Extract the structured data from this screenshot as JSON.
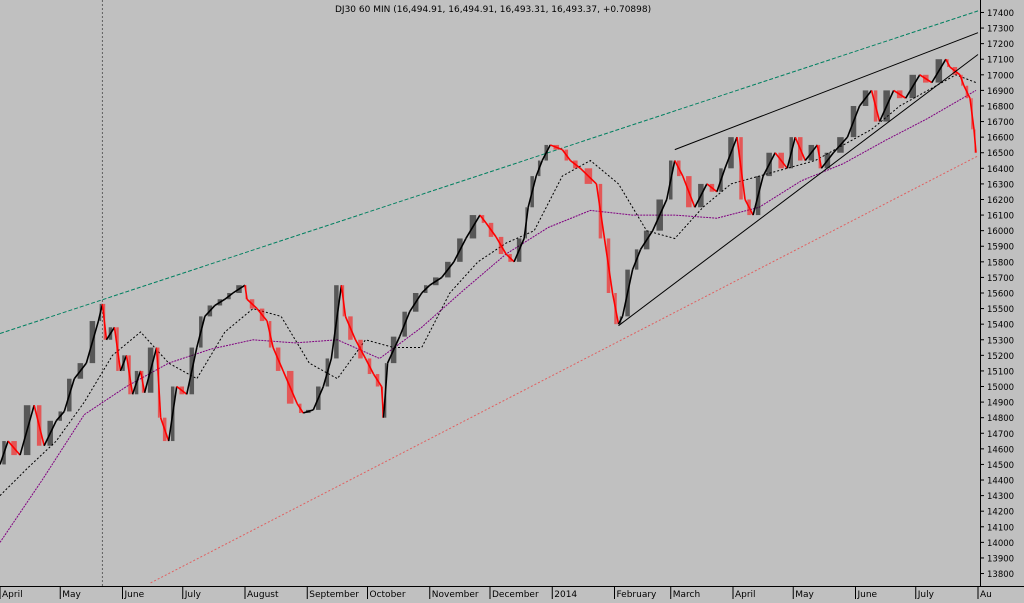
{
  "header": {
    "title": "DJ30 60 MIN (16,494.91, 16,494.91, 16,493.31, 16,493.37, +0.70898)"
  },
  "colors": {
    "background": "#c0c0c0",
    "grid": "#b0b0b0",
    "up_candle": "#000000",
    "down_candle": "#ff0000",
    "ma_fast": "#000000",
    "ma_slow": "#800080",
    "upper_channel": "#008060",
    "lower_channel": "#e06060",
    "wedge_lines": "#000000"
  },
  "chart_data": {
    "type": "line",
    "title": "DJ30 60 MIN (16,494.91, 16,494.91, 16,493.31, 16,493.37, +0.70898)",
    "xlabel": "",
    "ylabel": "",
    "ylim": [
      13720,
      17480
    ],
    "y_ticks": [
      13800,
      13900,
      14000,
      14100,
      14200,
      14300,
      14400,
      14500,
      14600,
      14700,
      14800,
      14900,
      15000,
      15100,
      15200,
      15300,
      15400,
      15500,
      15600,
      15700,
      15800,
      15900,
      16000,
      16100,
      16200,
      16300,
      16400,
      16500,
      16600,
      16700,
      16800,
      16900,
      17000,
      17100,
      17200,
      17300,
      17400
    ],
    "x_range": [
      "2013-04-01",
      "2014-08-01"
    ],
    "x_ticks": [
      {
        "label": "April",
        "date": "2013-04-01"
      },
      {
        "label": "May",
        "date": "2013-05-01"
      },
      {
        "label": "June",
        "date": "2013-06-01"
      },
      {
        "label": "July",
        "date": "2013-07-01"
      },
      {
        "label": "August",
        "date": "2013-08-01"
      },
      {
        "label": "September",
        "date": "2013-09-01"
      },
      {
        "label": "October",
        "date": "2013-10-01"
      },
      {
        "label": "November",
        "date": "2013-11-01"
      },
      {
        "label": "December",
        "date": "2013-12-01"
      },
      {
        "label": "2014",
        "date": "2014-01-01"
      },
      {
        "label": "February",
        "date": "2014-02-01"
      },
      {
        "label": "March",
        "date": "2014-03-01"
      },
      {
        "label": "April",
        "date": "2014-04-01"
      },
      {
        "label": "May",
        "date": "2014-05-01"
      },
      {
        "label": "June",
        "date": "2014-06-01"
      },
      {
        "label": "July",
        "date": "2014-07-01"
      },
      {
        "label": "Au",
        "date": "2014-08-01"
      }
    ],
    "grid": false,
    "vertical_marker_date": "2013-05-22",
    "series": [
      {
        "style": "price",
        "x": [
          "2013-04-01",
          "2013-04-05",
          "2013-04-11",
          "2013-04-18",
          "2013-04-23",
          "2013-04-29",
          "2013-05-03",
          "2013-05-08",
          "2013-05-14",
          "2013-05-20",
          "2013-05-22",
          "2013-05-24",
          "2013-05-28",
          "2013-05-31",
          "2013-06-03",
          "2013-06-06",
          "2013-06-10",
          "2013-06-12",
          "2013-06-18",
          "2013-06-20",
          "2013-06-24",
          "2013-06-28",
          "2013-07-03",
          "2013-07-08",
          "2013-07-12",
          "2013-07-17",
          "2013-07-22",
          "2013-07-26",
          "2013-08-01",
          "2013-08-02",
          "2013-08-07",
          "2013-08-12",
          "2013-08-15",
          "2013-08-20",
          "2013-08-27",
          "2013-08-30",
          "2013-09-04",
          "2013-09-09",
          "2013-09-13",
          "2013-09-18",
          "2013-09-20",
          "2013-09-25",
          "2013-09-30",
          "2013-10-04",
          "2013-10-08",
          "2013-10-09",
          "2013-10-11",
          "2013-10-17",
          "2013-10-22",
          "2013-10-28",
          "2013-11-01",
          "2013-11-07",
          "2013-11-13",
          "2013-11-19",
          "2013-11-26",
          "2013-11-29",
          "2013-12-04",
          "2013-12-09",
          "2013-12-13",
          "2013-12-18",
          "2013-12-20",
          "2013-12-24",
          "2013-12-27",
          "2013-12-31",
          "2014-01-06",
          "2014-01-10",
          "2014-01-15",
          "2014-01-23",
          "2014-01-27",
          "2014-01-31",
          "2014-02-03",
          "2014-02-05",
          "2014-02-10",
          "2014-02-14",
          "2014-02-20",
          "2014-02-27",
          "2014-03-03",
          "2014-03-07",
          "2014-03-13",
          "2014-03-19",
          "2014-03-24",
          "2014-03-28",
          "2014-04-03",
          "2014-04-07",
          "2014-04-11",
          "2014-04-16",
          "2014-04-22",
          "2014-04-28",
          "2014-05-02",
          "2014-05-07",
          "2014-05-13",
          "2014-05-15",
          "2014-05-21",
          "2014-05-28",
          "2014-06-03",
          "2014-06-09",
          "2014-06-13",
          "2014-06-20",
          "2014-06-26",
          "2014-07-03",
          "2014-07-09",
          "2014-07-16",
          "2014-07-18",
          "2014-07-23",
          "2014-07-25",
          "2014-07-28",
          "2014-07-30",
          "2014-07-31"
        ],
        "y": [
          14500,
          14650,
          14560,
          14880,
          14620,
          14780,
          14840,
          15050,
          15150,
          15420,
          15530,
          15300,
          15380,
          15100,
          15200,
          14950,
          15100,
          14960,
          15250,
          14800,
          14650,
          15000,
          14950,
          15250,
          15450,
          15520,
          15560,
          15600,
          15650,
          15560,
          15500,
          15420,
          15250,
          15100,
          14890,
          14830,
          14850,
          15000,
          15180,
          15650,
          15450,
          15300,
          15180,
          15080,
          15000,
          14800,
          15150,
          15320,
          15480,
          15600,
          15650,
          15700,
          15800,
          15950,
          16100,
          16050,
          15960,
          15850,
          15800,
          15950,
          16150,
          16350,
          16450,
          16550,
          16520,
          16450,
          16400,
          16300,
          15950,
          15600,
          15400,
          15450,
          15750,
          15880,
          16000,
          16200,
          16450,
          16350,
          16150,
          16300,
          16250,
          16400,
          16600,
          16200,
          16100,
          16350,
          16500,
          16400,
          16600,
          16450,
          16550,
          16400,
          16500,
          16600,
          16800,
          16900,
          16700,
          16900,
          16850,
          17000,
          16950,
          17100,
          17050,
          17000,
          16930,
          16850,
          16650,
          16500
        ]
      },
      {
        "name": "",
        "style": "ma_fast",
        "x": [
          "2013-04-01",
          "2013-04-15",
          "2013-04-29",
          "2013-05-13",
          "2013-05-27",
          "2013-06-10",
          "2013-06-24",
          "2013-07-08",
          "2013-07-22",
          "2013-08-05",
          "2013-08-19",
          "2013-09-02",
          "2013-09-16",
          "2013-09-30",
          "2013-10-14",
          "2013-10-28",
          "2013-11-11",
          "2013-11-25",
          "2013-12-09",
          "2013-12-23",
          "2014-01-06",
          "2014-01-20",
          "2014-02-03",
          "2014-02-17",
          "2014-03-03",
          "2014-03-17",
          "2014-03-31",
          "2014-04-14",
          "2014-04-28",
          "2014-05-12",
          "2014-05-26",
          "2014-06-09",
          "2014-06-23",
          "2014-07-07",
          "2014-07-21",
          "2014-07-31"
        ],
        "y": [
          14300,
          14480,
          14650,
          14900,
          15200,
          15350,
          15150,
          15050,
          15350,
          15500,
          15450,
          15150,
          15050,
          15300,
          15250,
          15250,
          15600,
          15800,
          15920,
          16000,
          16350,
          16450,
          16300,
          16000,
          15950,
          16150,
          16300,
          16350,
          16400,
          16450,
          16550,
          16650,
          16800,
          16900,
          17000,
          16950
        ]
      },
      {
        "name": "",
        "style": "ma_slow",
        "x": [
          "2013-04-01",
          "2013-04-22",
          "2013-05-13",
          "2013-06-03",
          "2013-06-24",
          "2013-07-15",
          "2013-08-05",
          "2013-08-26",
          "2013-09-16",
          "2013-10-07",
          "2013-10-28",
          "2013-11-18",
          "2013-12-09",
          "2013-12-30",
          "2014-01-20",
          "2014-02-10",
          "2014-03-03",
          "2014-03-24",
          "2014-04-14",
          "2014-05-05",
          "2014-05-26",
          "2014-06-16",
          "2014-07-07",
          "2014-07-31"
        ],
        "y": [
          14000,
          14400,
          14820,
          15000,
          15150,
          15240,
          15300,
          15280,
          15300,
          15180,
          15380,
          15620,
          15850,
          16020,
          16130,
          16100,
          16100,
          16080,
          16150,
          16320,
          16430,
          16580,
          16720,
          16900
        ]
      },
      {
        "name": "",
        "style": "upper_channel",
        "x": [
          "2013-04-01",
          "2014-08-01"
        ],
        "y": [
          15340,
          17410
        ]
      },
      {
        "name": "",
        "style": "lower_channel",
        "x": [
          "2013-06-15",
          "2014-08-01"
        ],
        "y": [
          13740,
          16480
        ]
      },
      {
        "name": "",
        "style": "wedge",
        "x": [
          "2014-02-03",
          "2014-08-01"
        ],
        "y": [
          15390,
          17130
        ]
      },
      {
        "name": "",
        "style": "wedge",
        "x": [
          "2014-03-03",
          "2014-08-01"
        ],
        "y": [
          16520,
          17270
        ]
      }
    ]
  }
}
